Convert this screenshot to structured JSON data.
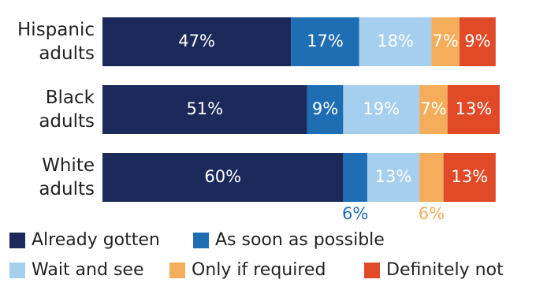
{
  "chart_data": {
    "type": "stacked-bar-horizontal",
    "categories": [
      "Hispanic adults",
      "Black adults",
      "White adults"
    ],
    "series": [
      {
        "name": "Already gotten",
        "color": "#1b2a5a",
        "values": [
          47,
          51,
          60
        ],
        "value_labels": [
          "47%",
          "51%",
          "60%"
        ]
      },
      {
        "name": "As soon as possible",
        "color": "#1f6eb4",
        "values": [
          17,
          9,
          6
        ],
        "value_labels": [
          "17%",
          "9%",
          "6%"
        ]
      },
      {
        "name": "Wait and see",
        "color": "#a6cfee",
        "values": [
          18,
          19,
          13
        ],
        "value_labels": [
          "18%",
          "19%",
          "13%"
        ]
      },
      {
        "name": "Only if required",
        "color": "#f4ad5a",
        "values": [
          7,
          7,
          6
        ],
        "value_labels": [
          "7%",
          "7%",
          "6%"
        ]
      },
      {
        "name": "Definitely not",
        "color": "#e04a28",
        "values": [
          9,
          13,
          13
        ],
        "value_labels": [
          "9%",
          "13%",
          "13%"
        ]
      }
    ]
  }
}
